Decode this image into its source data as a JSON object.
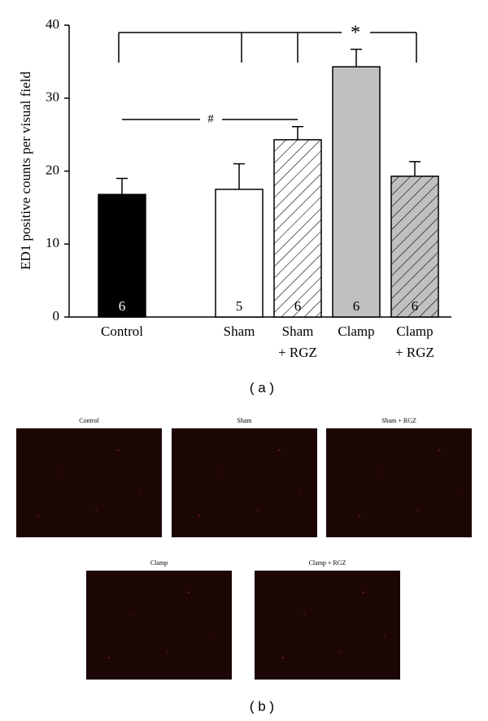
{
  "chart_data": {
    "type": "bar",
    "y_label": "ED1 positive counts per visual field",
    "categories": [
      [
        "Control"
      ],
      null,
      [
        "Sham"
      ],
      [
        "Sham",
        "+ RGZ"
      ],
      [
        "Clamp"
      ],
      [
        "Clamp",
        "+ RGZ"
      ]
    ],
    "values": [
      16.8,
      null,
      17.5,
      24.3,
      34.3,
      19.3
    ],
    "errors": [
      2.2,
      null,
      3.5,
      1.8,
      2.4,
      2.0
    ],
    "n": [
      6,
      null,
      5,
      6,
      6,
      6
    ],
    "colors": [
      "#000000",
      null,
      "#ffffff",
      "#ffffff",
      "#c0c0c0",
      "#c0c0c0"
    ],
    "hatch": [
      false,
      null,
      false,
      true,
      false,
      true
    ],
    "ylim": [
      0,
      40
    ],
    "yticks": [
      0,
      10,
      20,
      30,
      40
    ],
    "annotations": [
      "*",
      "#"
    ],
    "panel_label": "( a )"
  },
  "panel_b": {
    "label": "( b )",
    "images": [
      {
        "caption": "Control"
      },
      {
        "caption": "Sham"
      },
      {
        "caption": "Sham + RGZ"
      },
      {
        "caption": "Clamp"
      },
      {
        "caption": "Clamp + RGZ"
      }
    ]
  }
}
